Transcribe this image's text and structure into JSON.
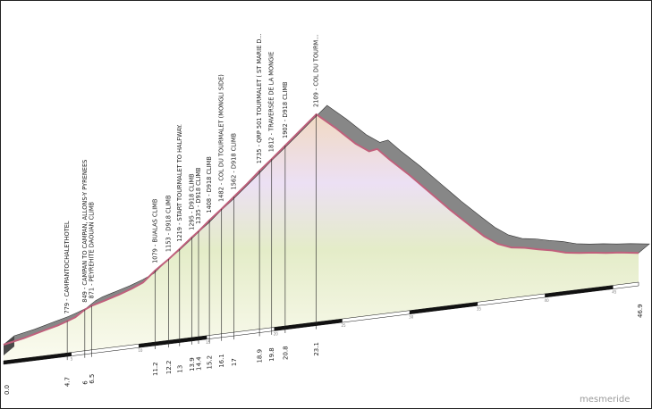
{
  "brand": {
    "watermark": "mesmeride"
  },
  "chart_data": {
    "type": "area",
    "title": "",
    "xlabel": "",
    "ylabel": "",
    "xlim": [
      0,
      46.9
    ],
    "ylim": [
      660,
      2109
    ],
    "profile": [
      [
        0.0,
        660
      ],
      [
        1.5,
        690
      ],
      [
        3.0,
        730
      ],
      [
        4.0,
        755
      ],
      [
        4.7,
        779
      ],
      [
        5.3,
        800
      ],
      [
        6.0,
        849
      ],
      [
        6.5,
        871
      ],
      [
        7.5,
        900
      ],
      [
        8.5,
        930
      ],
      [
        9.5,
        965
      ],
      [
        10.3,
        1000
      ],
      [
        11.2,
        1079
      ],
      [
        12.2,
        1153
      ],
      [
        13.0,
        1219
      ],
      [
        13.9,
        1295
      ],
      [
        14.4,
        1335
      ],
      [
        15.2,
        1408
      ],
      [
        16.1,
        1482
      ],
      [
        17.0,
        1562
      ],
      [
        18.0,
        1650
      ],
      [
        18.9,
        1735
      ],
      [
        19.8,
        1812
      ],
      [
        20.8,
        1902
      ],
      [
        22.0,
        2010
      ],
      [
        23.1,
        2109
      ],
      [
        24.5,
        1990
      ],
      [
        26.0,
        1850
      ],
      [
        27.0,
        1780
      ],
      [
        27.6,
        1790
      ],
      [
        28.5,
        1700
      ],
      [
        30.0,
        1560
      ],
      [
        31.5,
        1410
      ],
      [
        33.0,
        1260
      ],
      [
        34.5,
        1120
      ],
      [
        35.5,
        1030
      ],
      [
        36.5,
        960
      ],
      [
        37.5,
        920
      ],
      [
        38.5,
        905
      ],
      [
        39.5,
        880
      ],
      [
        40.5,
        860
      ],
      [
        41.5,
        830
      ],
      [
        42.5,
        815
      ],
      [
        43.5,
        805
      ],
      [
        44.5,
        790
      ],
      [
        45.5,
        780
      ],
      [
        46.9,
        760
      ]
    ],
    "waypoints": [
      {
        "km": 4.7,
        "km_label": "4.7",
        "label": "779 - CAMPANTOCHALETHOTEL"
      },
      {
        "km": 6.0,
        "km_label": "6",
        "label": "849 - CAMPAN TO CAMPAN, ALLONS-Y PYRENEES"
      },
      {
        "km": 6.5,
        "km_label": "6.5",
        "label": "871 - PEYREHITE DAOUAN CLIMB"
      },
      {
        "km": 11.2,
        "km_label": "11.2",
        "label": "1079 - BUALAS CLIMB"
      },
      {
        "km": 12.2,
        "km_label": "12.2",
        "label": "1153 - D918 CLIMB"
      },
      {
        "km": 13.0,
        "km_label": "13",
        "label": "1219 - START TOURMALET TO HALFWAY."
      },
      {
        "km": 13.9,
        "km_label": "13.9",
        "label": "1295 - D918 CLIMB"
      },
      {
        "km": 14.4,
        "km_label": "14.4",
        "label": "1335 - D918 CLIMB"
      },
      {
        "km": 15.2,
        "km_label": "15.2",
        "label": "1408 - D918 CLIMB"
      },
      {
        "km": 16.1,
        "km_label": "16.1",
        "label": "1482 - COL DU TOURMALET (MONGLI SIDE)"
      },
      {
        "km": 17.0,
        "km_label": "17",
        "label": "1562 - D918 CLIMB"
      },
      {
        "km": 18.9,
        "km_label": "18.9",
        "label": "1735 - QRP 501 TOURMALET ( ST MARIE D..."
      },
      {
        "km": 19.8,
        "km_label": "19.8",
        "label": "1812 - TRAVERSÉE DE LA MONGIE"
      },
      {
        "km": 20.8,
        "km_label": "20.8",
        "label": "1902 - D918 CLIMB"
      },
      {
        "km": 23.1,
        "km_label": "23.1",
        "label": "2109 - COL DU TOURM..."
      }
    ],
    "end_labels": {
      "start": "0.0",
      "end": "46.9"
    },
    "km_ticks": [
      "5",
      "10",
      "15",
      "20",
      "25",
      "30",
      "35",
      "40",
      "45"
    ],
    "colors": {
      "road_top": "#878787",
      "road_side": "#4a4a4a",
      "line": "#c0607c",
      "strip_dark": "#111111",
      "strip_light": "#ffffff",
      "fill_top": "#f1d9c2",
      "fill_mid": "#ece0f4",
      "fill_low": "#e4ecc8",
      "fill_bottom": "#fbfbf0"
    }
  }
}
